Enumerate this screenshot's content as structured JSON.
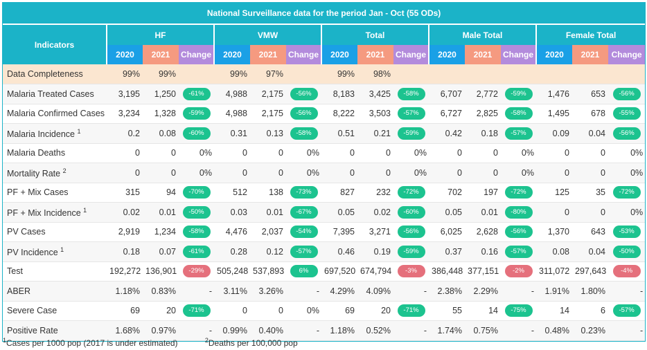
{
  "title": "National Surveillance data for the period Jan - Oct (55 ODs)",
  "indicators_header": "Indicators",
  "groups": [
    "HF",
    "VMW",
    "Total",
    "Male Total",
    "Female Total"
  ],
  "year_labels": [
    "2020",
    "2021",
    "Change"
  ],
  "rows": [
    {
      "label": "Data Completeness",
      "sup": "",
      "highlight": true,
      "cells": [
        [
          "99%",
          "99%",
          ""
        ],
        [
          "99%",
          "97%",
          ""
        ],
        [
          "99%",
          "98%",
          ""
        ],
        [
          "",
          "",
          ""
        ],
        [
          "",
          "",
          ""
        ]
      ]
    },
    {
      "label": "Malaria Treated Cases",
      "sup": "",
      "cells": [
        [
          "3,195",
          "1,250",
          "-61%"
        ],
        [
          "4,988",
          "2,175",
          "-56%"
        ],
        [
          "8,183",
          "3,425",
          "-58%"
        ],
        [
          "6,707",
          "2,772",
          "-59%"
        ],
        [
          "1,476",
          "653",
          "-56%"
        ]
      ]
    },
    {
      "label": "Malaria Confirmed Cases",
      "sup": "",
      "cells": [
        [
          "3,234",
          "1,328",
          "-59%"
        ],
        [
          "4,988",
          "2,175",
          "-56%"
        ],
        [
          "8,222",
          "3,503",
          "-57%"
        ],
        [
          "6,727",
          "2,825",
          "-58%"
        ],
        [
          "1,495",
          "678",
          "-55%"
        ]
      ]
    },
    {
      "label": "Malaria Incidence",
      "sup": "1",
      "cells": [
        [
          "0.2",
          "0.08",
          "-60%"
        ],
        [
          "0.31",
          "0.13",
          "-58%"
        ],
        [
          "0.51",
          "0.21",
          "-59%"
        ],
        [
          "0.42",
          "0.18",
          "-57%"
        ],
        [
          "0.09",
          "0.04",
          "-56%"
        ]
      ]
    },
    {
      "label": "Malaria Deaths",
      "sup": "",
      "cells": [
        [
          "0",
          "0",
          "0%"
        ],
        [
          "0",
          "0",
          "0%"
        ],
        [
          "0",
          "0",
          "0%"
        ],
        [
          "0",
          "0",
          "0%"
        ],
        [
          "0",
          "0",
          "0%"
        ]
      ]
    },
    {
      "label": "Mortality Rate",
      "sup": "2",
      "cells": [
        [
          "0",
          "0",
          "0%"
        ],
        [
          "0",
          "0",
          "0%"
        ],
        [
          "0",
          "0",
          "0%"
        ],
        [
          "0",
          "0",
          "0%"
        ],
        [
          "0",
          "0",
          "0%"
        ]
      ]
    },
    {
      "label": "PF + Mix Cases",
      "sup": "",
      "cells": [
        [
          "315",
          "94",
          "-70%"
        ],
        [
          "512",
          "138",
          "-73%"
        ],
        [
          "827",
          "232",
          "-72%"
        ],
        [
          "702",
          "197",
          "-72%"
        ],
        [
          "125",
          "35",
          "-72%"
        ]
      ]
    },
    {
      "label": "PF + Mix Incidence",
      "sup": "1",
      "cells": [
        [
          "0.02",
          "0.01",
          "-50%"
        ],
        [
          "0.03",
          "0.01",
          "-67%"
        ],
        [
          "0.05",
          "0.02",
          "-60%"
        ],
        [
          "0.05",
          "0.01",
          "-80%"
        ],
        [
          "0",
          "0",
          "0%"
        ]
      ]
    },
    {
      "label": "PV Cases",
      "sup": "",
      "cells": [
        [
          "2,919",
          "1,234",
          "-58%"
        ],
        [
          "4,476",
          "2,037",
          "-54%"
        ],
        [
          "7,395",
          "3,271",
          "-56%"
        ],
        [
          "6,025",
          "2,628",
          "-56%"
        ],
        [
          "1,370",
          "643",
          "-53%"
        ]
      ]
    },
    {
      "label": "PV Incidence",
      "sup": "1",
      "cells": [
        [
          "0.18",
          "0.07",
          "-61%"
        ],
        [
          "0.28",
          "0.12",
          "-57%"
        ],
        [
          "0.46",
          "0.19",
          "-59%"
        ],
        [
          "0.37",
          "0.16",
          "-57%"
        ],
        [
          "0.08",
          "0.04",
          "-50%"
        ]
      ]
    },
    {
      "label": "Test",
      "sup": "",
      "cells": [
        [
          "192,272",
          "136,901",
          "-29%"
        ],
        [
          "505,248",
          "537,893",
          "6%"
        ],
        [
          "697,520",
          "674,794",
          "-3%"
        ],
        [
          "386,448",
          "377,151",
          "-2%"
        ],
        [
          "311,072",
          "297,643",
          "-4%"
        ]
      ]
    },
    {
      "label": "ABER",
      "sup": "",
      "cells": [
        [
          "1.18%",
          "0.83%",
          "-"
        ],
        [
          "3.11%",
          "3.26%",
          "-"
        ],
        [
          "4.29%",
          "4.09%",
          "-"
        ],
        [
          "2.38%",
          "2.29%",
          "-"
        ],
        [
          "1.91%",
          "1.80%",
          "-"
        ]
      ]
    },
    {
      "label": "Severe Case",
      "sup": "",
      "cells": [
        [
          "69",
          "20",
          "-71%"
        ],
        [
          "0",
          "0",
          "0%"
        ],
        [
          "69",
          "20",
          "-71%"
        ],
        [
          "55",
          "14",
          "-75%"
        ],
        [
          "14",
          "6",
          "-57%"
        ]
      ]
    },
    {
      "label": "Positive Rate",
      "sup": "",
      "cells": [
        [
          "1.68%",
          "0.97%",
          "-"
        ],
        [
          "0.99%",
          "0.40%",
          "-"
        ],
        [
          "1.18%",
          "0.52%",
          "-"
        ],
        [
          "1.74%",
          "0.75%",
          "-"
        ],
        [
          "0.48%",
          "0.23%",
          "-"
        ]
      ]
    }
  ],
  "pill_colors": {
    "decrease": "#1cc38f",
    "increase_test": "#e5707c"
  },
  "footnotes": [
    {
      "sup": "1",
      "text": "Cases per 1000 pop (2017 is under estimated)"
    },
    {
      "sup": "2",
      "text": "Deaths per 100,000 pop"
    }
  ]
}
